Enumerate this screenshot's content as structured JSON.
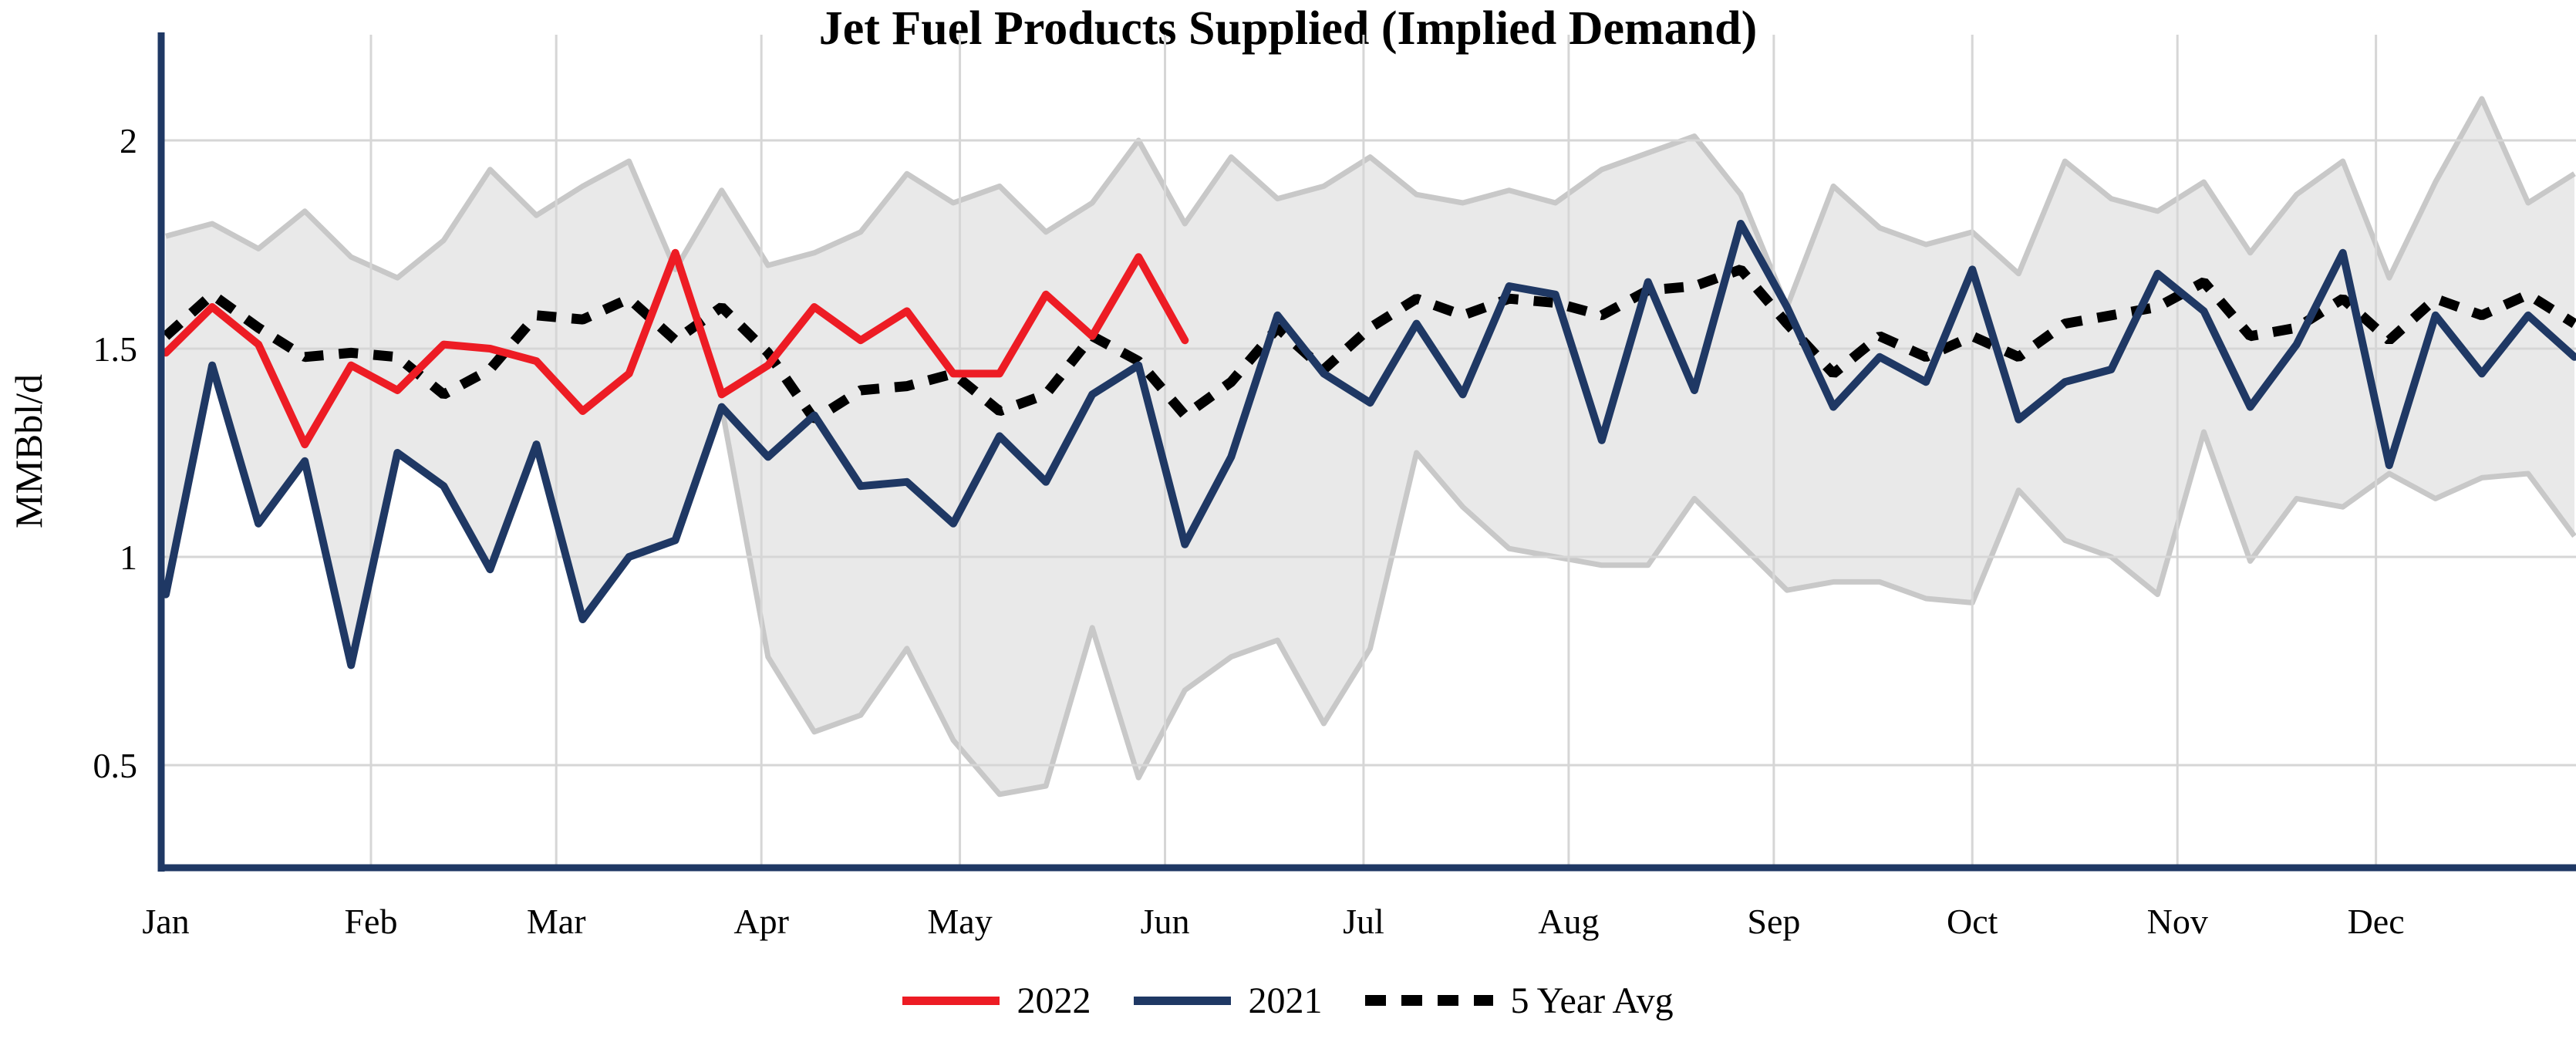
{
  "title": "Jet Fuel Products Supplied (Implied Demand)",
  "y_axis": {
    "label": "MMBbl/d",
    "tick_labels": [
      "2",
      "1.5",
      "1",
      "0.5"
    ],
    "tick_values": [
      2,
      1.5,
      1,
      0.5
    ]
  },
  "x_axis": {
    "months": [
      "Jan",
      "Feb",
      "Mar",
      "Apr",
      "May",
      "Jun",
      "Jul",
      "Aug",
      "Sep",
      "Oct",
      "Nov",
      "Dec"
    ]
  },
  "legend": [
    {
      "label": "2022",
      "color": "#ED1C24",
      "style": "solid"
    },
    {
      "label": "2021",
      "color": "#1F3864",
      "style": "solid"
    },
    {
      "label": "5 Year Avg",
      "color": "#000000",
      "style": "dotted"
    }
  ],
  "colors": {
    "axis": "#1F3864",
    "gridline": "#D6D6D6",
    "band_fill": "#E9E9E9",
    "band_edge": "#C8C8C8",
    "title_text": "#000000"
  },
  "chart_data": {
    "type": "line",
    "title": "Jet Fuel Products Supplied (Implied Demand)",
    "xlabel": "",
    "ylabel": "MMBbl/d",
    "x_unit": "weekly points, Jan 1 through Dec 31",
    "x_tick_labels": [
      "Jan",
      "Feb",
      "Mar",
      "Apr",
      "May",
      "Jun",
      "Jul",
      "Aug",
      "Sep",
      "Oct",
      "Nov",
      "Dec"
    ],
    "yticks": [
      0.5,
      1,
      1.5,
      2
    ],
    "ylim": [
      0.25,
      2.25
    ],
    "grid": true,
    "legend_position": "bottom",
    "n_points": 53,
    "series": [
      {
        "name": "2022",
        "color": "#ED1C24",
        "style": "solid",
        "values": [
          1.49,
          1.6,
          1.51,
          1.27,
          1.46,
          1.4,
          1.51,
          1.5,
          1.47,
          1.35,
          1.44,
          1.73,
          1.39,
          1.46,
          1.6,
          1.52,
          1.59,
          1.44,
          1.44,
          1.63,
          1.53,
          1.72,
          1.52
        ]
      },
      {
        "name": "2021",
        "color": "#1F3864",
        "style": "solid",
        "values": [
          0.91,
          1.46,
          1.08,
          1.23,
          0.74,
          1.25,
          1.17,
          0.97,
          1.27,
          0.85,
          1.0,
          1.04,
          1.36,
          1.24,
          1.34,
          1.17,
          1.18,
          1.08,
          1.29,
          1.18,
          1.39,
          1.46,
          1.03,
          1.24,
          1.58,
          1.44,
          1.37,
          1.56,
          1.39,
          1.65,
          1.63,
          1.28,
          1.66,
          1.4,
          1.8,
          1.6,
          1.36,
          1.48,
          1.42,
          1.69,
          1.33,
          1.42,
          1.45,
          1.68,
          1.59,
          1.36,
          1.51,
          1.73,
          1.22,
          1.58,
          1.44,
          1.58,
          1.48
        ]
      },
      {
        "name": "5 Year Avg",
        "color": "#000000",
        "style": "dotted",
        "values": [
          1.53,
          1.63,
          1.55,
          1.48,
          1.49,
          1.48,
          1.39,
          1.45,
          1.58,
          1.57,
          1.62,
          1.52,
          1.6,
          1.49,
          1.33,
          1.4,
          1.41,
          1.44,
          1.35,
          1.39,
          1.53,
          1.47,
          1.34,
          1.42,
          1.55,
          1.45,
          1.55,
          1.62,
          1.58,
          1.62,
          1.61,
          1.58,
          1.64,
          1.65,
          1.69,
          1.56,
          1.44,
          1.53,
          1.48,
          1.53,
          1.48,
          1.56,
          1.58,
          1.6,
          1.66,
          1.53,
          1.55,
          1.62,
          1.52,
          1.62,
          1.58,
          1.63,
          1.56
        ]
      }
    ],
    "band": {
      "name": "5-year range",
      "fill": "#E9E9E9",
      "edge": "#C8C8C8",
      "upper": [
        1.77,
        1.8,
        1.74,
        1.83,
        1.72,
        1.67,
        1.76,
        1.93,
        1.82,
        1.89,
        1.95,
        1.69,
        1.88,
        1.7,
        1.73,
        1.78,
        1.92,
        1.85,
        1.89,
        1.78,
        1.85,
        2.0,
        1.8,
        1.96,
        1.86,
        1.89,
        1.96,
        1.87,
        1.85,
        1.88,
        1.85,
        1.93,
        1.97,
        2.01,
        1.87,
        1.6,
        1.89,
        1.79,
        1.75,
        1.78,
        1.68,
        1.95,
        1.86,
        1.83,
        1.9,
        1.73,
        1.87,
        1.95,
        1.67,
        1.9,
        2.1,
        1.85,
        1.92
      ],
      "lower": [
        0.91,
        1.46,
        1.08,
        1.23,
        0.74,
        1.25,
        1.17,
        0.97,
        1.27,
        0.85,
        1.0,
        1.04,
        1.36,
        0.76,
        0.58,
        0.62,
        0.78,
        0.56,
        0.43,
        0.45,
        0.83,
        0.47,
        0.68,
        0.76,
        0.8,
        0.6,
        0.78,
        1.25,
        1.12,
        1.02,
        1.0,
        0.98,
        0.98,
        1.14,
        1.03,
        0.92,
        0.94,
        0.94,
        0.9,
        0.89,
        1.16,
        1.04,
        1.0,
        0.91,
        1.3,
        0.99,
        1.14,
        1.12,
        1.2,
        1.14,
        1.19,
        1.2,
        1.05
      ]
    }
  }
}
